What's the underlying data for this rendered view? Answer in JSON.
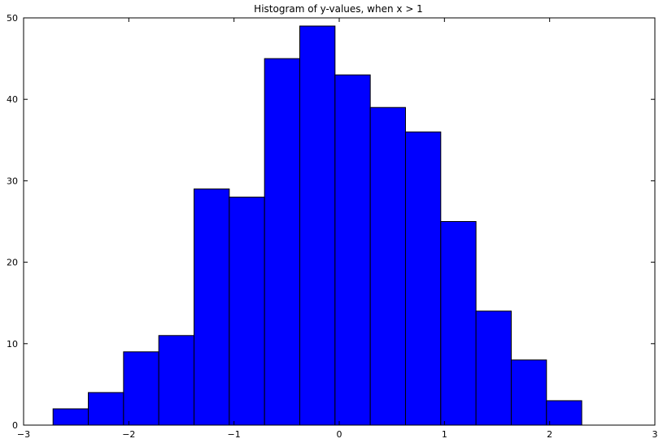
{
  "chart_data": {
    "type": "bar",
    "title": "Histogram of y-values, when x > 1",
    "xlabel": "",
    "ylabel": "",
    "xlim": [
      -3,
      3
    ],
    "ylim": [
      0,
      50
    ],
    "grid": false,
    "bar_color": "#0000ff",
    "edge_color": "#000000",
    "x_ticks": [
      -3,
      -2,
      -1,
      0,
      1,
      2,
      3
    ],
    "x_tick_labels": [
      "−3",
      "−2",
      "−1",
      "0",
      "1",
      "2",
      "3"
    ],
    "y_ticks": [
      0,
      10,
      20,
      30,
      40,
      50
    ],
    "y_tick_labels": [
      "0",
      "10",
      "20",
      "30",
      "40",
      "50"
    ],
    "bins": [
      {
        "start": -2.72,
        "end": -2.385,
        "count": 2
      },
      {
        "start": -2.385,
        "end": -2.05,
        "count": 4
      },
      {
        "start": -2.05,
        "end": -1.715,
        "count": 9
      },
      {
        "start": -1.715,
        "end": -1.38,
        "count": 11
      },
      {
        "start": -1.38,
        "end": -1.045,
        "count": 29
      },
      {
        "start": -1.045,
        "end": -0.71,
        "count": 28
      },
      {
        "start": -0.71,
        "end": -0.375,
        "count": 45
      },
      {
        "start": -0.375,
        "end": -0.04,
        "count": 49
      },
      {
        "start": -0.04,
        "end": 0.295,
        "count": 43
      },
      {
        "start": 0.295,
        "end": 0.63,
        "count": 39
      },
      {
        "start": 0.63,
        "end": 0.965,
        "count": 36
      },
      {
        "start": 0.965,
        "end": 1.3,
        "count": 25
      },
      {
        "start": 1.3,
        "end": 1.635,
        "count": 14
      },
      {
        "start": 1.635,
        "end": 1.97,
        "count": 8
      },
      {
        "start": 1.97,
        "end": 2.305,
        "count": 3
      }
    ]
  }
}
